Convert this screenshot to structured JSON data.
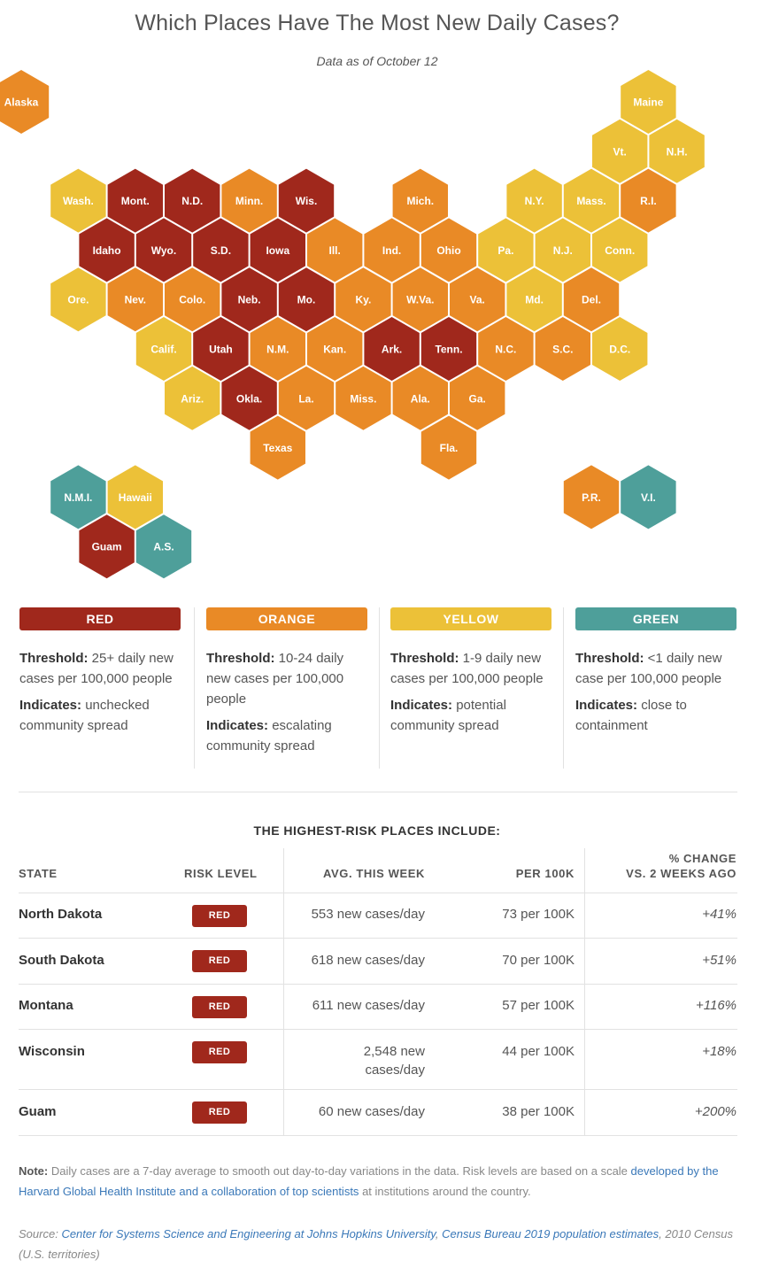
{
  "header": {
    "title": "Which Places Have The Most New Daily Cases?",
    "subtitle": "Data as of October 12"
  },
  "colors": {
    "red": "#a0281c",
    "orange": "#e98a26",
    "yellow": "#ecc138",
    "green": "#4e9f9a"
  },
  "chart_data": {
    "type": "hex-tile-map",
    "title": "Which Places Have The Most New Daily Cases?",
    "levels": [
      "red",
      "orange",
      "yellow",
      "green"
    ],
    "tiles": [
      {
        "label": "Alaska",
        "row": 0,
        "col": 0,
        "level": "orange"
      },
      {
        "label": "Maine",
        "row": 0,
        "col": 11,
        "level": "yellow"
      },
      {
        "label": "Vt.",
        "row": 1,
        "col": 10,
        "level": "yellow"
      },
      {
        "label": "N.H.",
        "row": 1,
        "col": 11,
        "level": "yellow"
      },
      {
        "label": "Wash.",
        "row": 2,
        "col": 1,
        "level": "yellow"
      },
      {
        "label": "Mont.",
        "row": 2,
        "col": 2,
        "level": "red"
      },
      {
        "label": "N.D.",
        "row": 2,
        "col": 3,
        "level": "red"
      },
      {
        "label": "Minn.",
        "row": 2,
        "col": 4,
        "level": "orange"
      },
      {
        "label": "Wis.",
        "row": 2,
        "col": 5,
        "level": "red"
      },
      {
        "label": "Mich.",
        "row": 2,
        "col": 7,
        "level": "orange"
      },
      {
        "label": "N.Y.",
        "row": 2,
        "col": 9,
        "level": "yellow"
      },
      {
        "label": "Mass.",
        "row": 2,
        "col": 10,
        "level": "yellow"
      },
      {
        "label": "R.I.",
        "row": 2,
        "col": 11,
        "level": "orange"
      },
      {
        "label": "Idaho",
        "row": 3,
        "col": 1,
        "level": "red"
      },
      {
        "label": "Wyo.",
        "row": 3,
        "col": 2,
        "level": "red"
      },
      {
        "label": "S.D.",
        "row": 3,
        "col": 3,
        "level": "red"
      },
      {
        "label": "Iowa",
        "row": 3,
        "col": 4,
        "level": "red"
      },
      {
        "label": "Ill.",
        "row": 3,
        "col": 5,
        "level": "orange"
      },
      {
        "label": "Ind.",
        "row": 3,
        "col": 6,
        "level": "orange"
      },
      {
        "label": "Ohio",
        "row": 3,
        "col": 7,
        "level": "orange"
      },
      {
        "label": "Pa.",
        "row": 3,
        "col": 8,
        "level": "yellow"
      },
      {
        "label": "N.J.",
        "row": 3,
        "col": 9,
        "level": "yellow"
      },
      {
        "label": "Conn.",
        "row": 3,
        "col": 10,
        "level": "yellow"
      },
      {
        "label": "Ore.",
        "row": 4,
        "col": 1,
        "level": "yellow"
      },
      {
        "label": "Nev.",
        "row": 4,
        "col": 2,
        "level": "orange"
      },
      {
        "label": "Colo.",
        "row": 4,
        "col": 3,
        "level": "orange"
      },
      {
        "label": "Neb.",
        "row": 4,
        "col": 4,
        "level": "red"
      },
      {
        "label": "Mo.",
        "row": 4,
        "col": 5,
        "level": "red"
      },
      {
        "label": "Ky.",
        "row": 4,
        "col": 6,
        "level": "orange"
      },
      {
        "label": "W.Va.",
        "row": 4,
        "col": 7,
        "level": "orange"
      },
      {
        "label": "Va.",
        "row": 4,
        "col": 8,
        "level": "orange"
      },
      {
        "label": "Md.",
        "row": 4,
        "col": 9,
        "level": "yellow"
      },
      {
        "label": "Del.",
        "row": 4,
        "col": 10,
        "level": "orange"
      },
      {
        "label": "Calif.",
        "row": 5,
        "col": 2,
        "level": "yellow"
      },
      {
        "label": "Utah",
        "row": 5,
        "col": 3,
        "level": "red"
      },
      {
        "label": "N.M.",
        "row": 5,
        "col": 4,
        "level": "orange"
      },
      {
        "label": "Kan.",
        "row": 5,
        "col": 5,
        "level": "orange"
      },
      {
        "label": "Ark.",
        "row": 5,
        "col": 6,
        "level": "red"
      },
      {
        "label": "Tenn.",
        "row": 5,
        "col": 7,
        "level": "red"
      },
      {
        "label": "N.C.",
        "row": 5,
        "col": 8,
        "level": "orange"
      },
      {
        "label": "S.C.",
        "row": 5,
        "col": 9,
        "level": "orange"
      },
      {
        "label": "D.C.",
        "row": 5,
        "col": 10,
        "level": "yellow"
      },
      {
        "label": "Ariz.",
        "row": 6,
        "col": 3,
        "level": "yellow"
      },
      {
        "label": "Okla.",
        "row": 6,
        "col": 4,
        "level": "red"
      },
      {
        "label": "La.",
        "row": 6,
        "col": 5,
        "level": "orange"
      },
      {
        "label": "Miss.",
        "row": 6,
        "col": 6,
        "level": "orange"
      },
      {
        "label": "Ala.",
        "row": 6,
        "col": 7,
        "level": "orange"
      },
      {
        "label": "Ga.",
        "row": 6,
        "col": 8,
        "level": "orange"
      },
      {
        "label": "Texas",
        "row": 7,
        "col": 4,
        "level": "orange"
      },
      {
        "label": "Fla.",
        "row": 7,
        "col": 7,
        "level": "orange"
      },
      {
        "label": "N.M.I.",
        "row": 8,
        "col": 1,
        "level": "green"
      },
      {
        "label": "Hawaii",
        "row": 8,
        "col": 2,
        "level": "yellow"
      },
      {
        "label": "P.R.",
        "row": 8,
        "col": 10,
        "level": "orange"
      },
      {
        "label": "V.I.",
        "row": 8,
        "col": 11,
        "level": "green"
      },
      {
        "label": "Guam",
        "row": 9,
        "col": 1,
        "level": "red"
      },
      {
        "label": "A.S.",
        "row": 9,
        "col": 2,
        "level": "green"
      }
    ]
  },
  "legend": [
    {
      "badge": "RED",
      "threshold_label": "Threshold:",
      "threshold": "25+ daily new cases per 100,000 people",
      "indicates_label": "Indicates:",
      "indicates": "unchecked community spread"
    },
    {
      "badge": "ORANGE",
      "threshold_label": "Threshold:",
      "threshold": "10-24 daily new cases per 100,000 people",
      "indicates_label": "Indicates:",
      "indicates": "escalating community spread"
    },
    {
      "badge": "YELLOW",
      "threshold_label": "Threshold:",
      "threshold": "1-9 daily new cases per 100,000 people",
      "indicates_label": "Indicates:",
      "indicates": "potential community spread"
    },
    {
      "badge": "GREEN",
      "threshold_label": "Threshold:",
      "threshold": "<1 daily new case per 100,000 people",
      "indicates_label": "Indicates:",
      "indicates": "close to containment"
    }
  ],
  "table": {
    "title": "THE HIGHEST-RISK PLACES INCLUDE:",
    "headers": {
      "state": "STATE",
      "risk": "RISK LEVEL",
      "avg": "AVG. THIS WEEK",
      "per": "PER 100K",
      "change_1": "% CHANGE",
      "change_2": "VS. 2 WEEKS AGO"
    },
    "rows": [
      {
        "state": "North Dakota",
        "risk": "RED",
        "avg": "553 new cases/day",
        "per": "73 per 100K",
        "change": "+41%"
      },
      {
        "state": "South Dakota",
        "risk": "RED",
        "avg": "618 new cases/day",
        "per": "70 per 100K",
        "change": "+51%"
      },
      {
        "state": "Montana",
        "risk": "RED",
        "avg": "611 new cases/day",
        "per": "57 per 100K",
        "change": "+116%"
      },
      {
        "state": "Wisconsin",
        "risk": "RED",
        "avg_1": "2,548 new",
        "avg_2": "cases/day",
        "per": "44 per 100K",
        "change": "+18%"
      },
      {
        "state": "Guam",
        "risk": "RED",
        "avg": "60 new cases/day",
        "per": "38 per 100K",
        "change": "+200%"
      }
    ]
  },
  "notes": {
    "note_label": "Note:",
    "note_text": "Daily cases are a 7-day average to smooth out day-to-day variations in the data. Risk levels are based on a scale",
    "note_link": "developed by the Harvard Global Health Institute and a collaboration of top scientists",
    "note_end": "at institutions around the country.",
    "source_label": "Source:",
    "source_link_1": "Center for Systems Science and Engineering at Johns Hopkins University",
    "source_sep": ",",
    "source_link_2": "Census Bureau 2019 population estimates",
    "source_end": ", 2010 Census (U.S. territories)"
  }
}
